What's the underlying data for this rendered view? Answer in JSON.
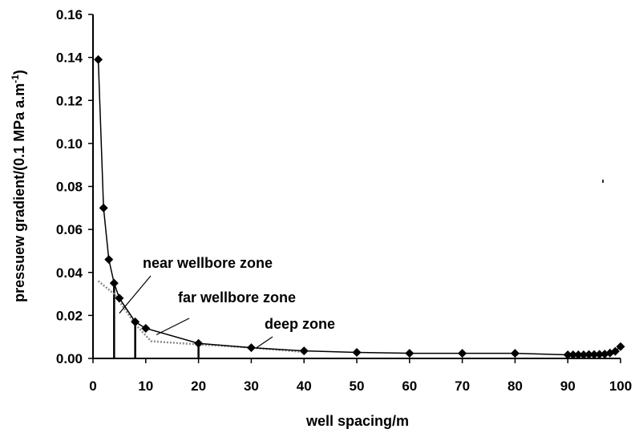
{
  "chart_data": {
    "type": "line",
    "title": "",
    "xlabel": "well spacing/m",
    "ylabel": "pressuew gradient/(0.1 MPa a.m",
    "ylabel_sup": "-1",
    "ylabel_tail": ")",
    "xlim": [
      0,
      100
    ],
    "ylim": [
      0,
      0.16
    ],
    "x_ticks": [
      "0",
      "10",
      "20",
      "30",
      "40",
      "50",
      "60",
      "70",
      "80",
      "90",
      "100"
    ],
    "y_ticks": [
      "0.00",
      "0.02",
      "0.04",
      "0.06",
      "0.08",
      "0.10",
      "0.12",
      "0.14",
      "0.16"
    ],
    "grid": false,
    "series": [
      {
        "style": "solid-with-diamond-markers",
        "color": "#000000",
        "x": [
          1,
          2,
          3,
          4,
          5,
          8,
          10,
          20,
          30,
          40,
          50,
          60,
          70,
          80,
          90,
          91,
          92,
          93,
          94,
          95,
          96,
          97,
          98,
          99,
          100
        ],
        "y": [
          0.139,
          0.07,
          0.046,
          0.035,
          0.028,
          0.017,
          0.014,
          0.007,
          0.005,
          0.0035,
          0.0028,
          0.0024,
          0.0024,
          0.0024,
          0.0017,
          0.0017,
          0.0017,
          0.0017,
          0.0018,
          0.0018,
          0.0019,
          0.002,
          0.0025,
          0.0033,
          0.0055
        ]
      },
      {
        "style": "dotted",
        "color": "#8a8a8a",
        "x": [
          1,
          4,
          8,
          11,
          20,
          30,
          40
        ],
        "y": [
          0.036,
          0.03,
          0.016,
          0.008,
          0.0065,
          0.005,
          0.003
        ]
      }
    ],
    "zone_markers": [
      {
        "x": 4,
        "y": 0.035
      },
      {
        "x": 8,
        "y": 0.017
      },
      {
        "x": 20,
        "y": 0.007
      }
    ],
    "annotations": [
      {
        "text": "near wellbore zone",
        "point_x": 5,
        "point_y": 0.021
      },
      {
        "text": "far wellbore zone",
        "point_x": 12,
        "point_y": 0.011
      },
      {
        "text": "deep zone",
        "point_x": 31,
        "point_y": 0.005
      }
    ]
  }
}
